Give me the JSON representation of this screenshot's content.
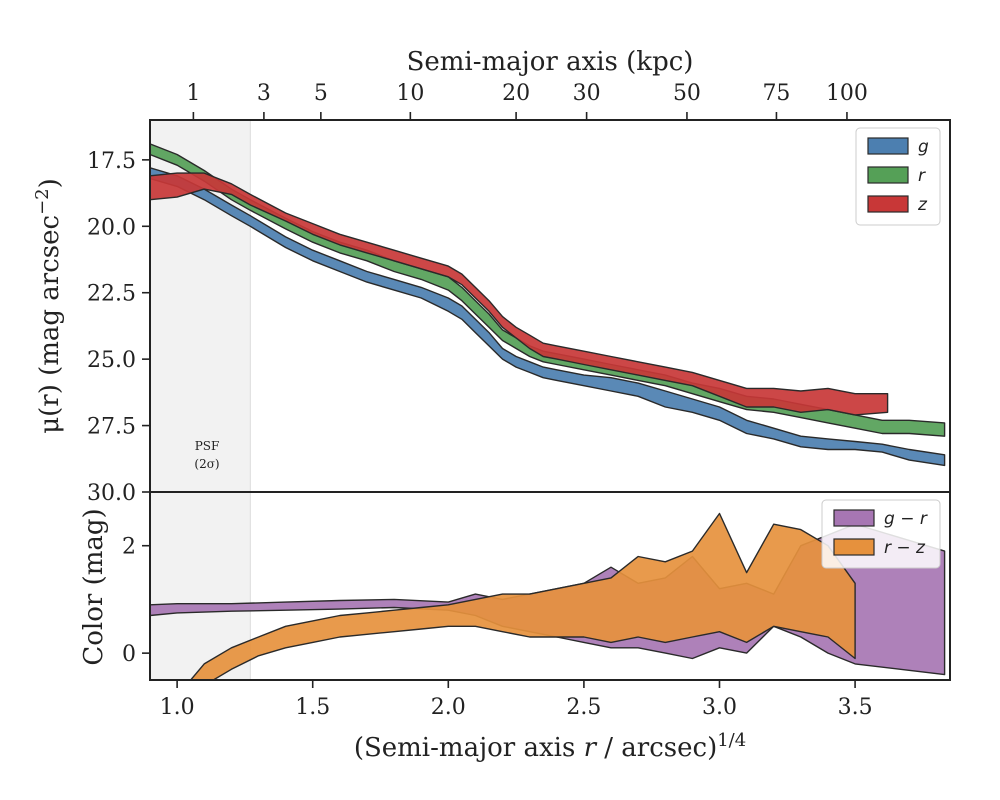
{
  "chart_data": [
    {
      "type": "area",
      "panel": "top",
      "ylabel_text": "μ(r) (mag arcsec",
      "ylabel_sup": "−2",
      "ylabel_close": ")",
      "xlabel": "",
      "ylim": [
        30.0,
        16.0
      ],
      "xlim": [
        0.9,
        3.85
      ],
      "y_inverted": true,
      "yticks": [
        17.5,
        20.0,
        22.5,
        25.0,
        27.5,
        30.0
      ],
      "ytick_labels": [
        "17.5",
        "20.0",
        "22.5",
        "25.0",
        "27.5",
        "30.0"
      ],
      "top_axis": {
        "label": "Semi-major axis (kpc)",
        "ticks_kpc": [
          1,
          3,
          5,
          10,
          20,
          30,
          50,
          75,
          100
        ],
        "tick_x_positions": [
          1.06,
          1.32,
          1.53,
          1.86,
          2.25,
          2.51,
          2.88,
          3.21,
          3.47
        ]
      },
      "psf_band": {
        "x_range": [
          0.9,
          1.27
        ],
        "label_line1": "PSF",
        "label_line2": "(2σ)",
        "color": "#f2f2f2"
      },
      "legend": "top-right",
      "series": [
        {
          "name": "g",
          "color": "#4c7fb0",
          "x": [
            0.9,
            1.0,
            1.1,
            1.2,
            1.27,
            1.4,
            1.5,
            1.6,
            1.7,
            1.8,
            1.9,
            2.0,
            2.05,
            2.1,
            2.15,
            2.2,
            2.25,
            2.3,
            2.35,
            2.4,
            2.5,
            2.6,
            2.7,
            2.8,
            2.9,
            3.0,
            3.1,
            3.2,
            3.3,
            3.4,
            3.5,
            3.6,
            3.7,
            3.83
          ],
          "upper": [
            18.2,
            18.5,
            19.0,
            19.6,
            20.0,
            20.8,
            21.3,
            21.7,
            22.1,
            22.4,
            22.7,
            23.2,
            23.5,
            24.0,
            24.5,
            25.0,
            25.3,
            25.5,
            25.7,
            25.8,
            26.0,
            26.2,
            26.4,
            26.8,
            27.0,
            27.3,
            27.8,
            28.0,
            28.3,
            28.4,
            28.4,
            28.5,
            28.8,
            29.0
          ],
          "lower": [
            17.8,
            18.1,
            18.6,
            19.2,
            19.6,
            20.4,
            20.9,
            21.3,
            21.7,
            22.0,
            22.3,
            22.7,
            23.0,
            23.5,
            24.0,
            24.6,
            24.9,
            25.1,
            25.3,
            25.4,
            25.6,
            25.7,
            25.9,
            26.2,
            26.5,
            26.8,
            27.3,
            27.6,
            27.9,
            28.0,
            28.1,
            28.2,
            28.4,
            28.6
          ]
        },
        {
          "name": "r",
          "color": "#55a057",
          "x": [
            0.9,
            1.0,
            1.1,
            1.2,
            1.27,
            1.4,
            1.5,
            1.6,
            1.7,
            1.8,
            1.9,
            2.0,
            2.05,
            2.1,
            2.15,
            2.2,
            2.25,
            2.3,
            2.35,
            2.4,
            2.5,
            2.6,
            2.7,
            2.8,
            2.9,
            3.0,
            3.1,
            3.2,
            3.3,
            3.4,
            3.5,
            3.6,
            3.7,
            3.83
          ],
          "upper": [
            17.3,
            17.7,
            18.3,
            19.0,
            19.4,
            20.1,
            20.6,
            21.0,
            21.3,
            21.7,
            22.0,
            22.4,
            22.8,
            23.3,
            23.8,
            24.3,
            24.6,
            24.9,
            25.1,
            25.2,
            25.4,
            25.6,
            25.8,
            26.0,
            26.3,
            26.6,
            26.9,
            27.0,
            27.2,
            27.4,
            27.6,
            27.8,
            27.8,
            27.9
          ],
          "lower": [
            16.9,
            17.3,
            17.9,
            18.6,
            19.0,
            19.7,
            20.2,
            20.6,
            20.9,
            21.3,
            21.6,
            21.9,
            22.3,
            22.8,
            23.3,
            23.9,
            24.2,
            24.5,
            24.7,
            24.8,
            25.0,
            25.2,
            25.4,
            25.6,
            25.9,
            26.1,
            26.4,
            26.5,
            26.7,
            26.9,
            27.1,
            27.3,
            27.3,
            27.4
          ]
        },
        {
          "name": "z",
          "color": "#c83737",
          "x": [
            0.9,
            1.0,
            1.1,
            1.2,
            1.27,
            1.4,
            1.5,
            1.6,
            1.7,
            1.8,
            1.9,
            2.0,
            2.05,
            2.1,
            2.15,
            2.2,
            2.25,
            2.3,
            2.35,
            2.4,
            2.5,
            2.6,
            2.7,
            2.8,
            2.9,
            3.0,
            3.1,
            3.2,
            3.3,
            3.4,
            3.5,
            3.62
          ],
          "upper": [
            19.0,
            18.9,
            18.6,
            18.8,
            19.2,
            19.8,
            20.3,
            20.7,
            21.0,
            21.3,
            21.6,
            21.9,
            22.2,
            22.7,
            23.2,
            23.8,
            24.2,
            24.6,
            24.9,
            25.0,
            25.2,
            25.4,
            25.6,
            25.8,
            26.0,
            26.4,
            26.8,
            26.8,
            27.0,
            26.9,
            27.1,
            27.0
          ],
          "lower": [
            18.1,
            18.0,
            18.0,
            18.4,
            18.8,
            19.5,
            19.9,
            20.3,
            20.6,
            20.9,
            21.2,
            21.5,
            21.8,
            22.3,
            22.8,
            23.4,
            23.8,
            24.1,
            24.4,
            24.5,
            24.7,
            24.9,
            25.1,
            25.3,
            25.5,
            25.8,
            26.1,
            26.1,
            26.2,
            26.1,
            26.3,
            26.3
          ]
        }
      ]
    },
    {
      "type": "area",
      "panel": "bottom",
      "ylabel": "Color (mag)",
      "xlabel_main": "(Semi-major axis ",
      "xlabel_r": "r",
      "xlabel_rest": " / arcsec)",
      "xlabel_sup": "1/4",
      "xlim": [
        0.9,
        3.85
      ],
      "ylim": [
        -0.5,
        3.0
      ],
      "yticks": [
        0,
        2
      ],
      "ytick_labels": [
        "0",
        "2"
      ],
      "xticks": [
        1.0,
        1.5,
        2.0,
        2.5,
        3.0,
        3.5
      ],
      "xtick_labels": [
        "1.0",
        "1.5",
        "2.0",
        "2.5",
        "3.0",
        "3.5"
      ],
      "legend": "top-right",
      "series": [
        {
          "name": "g − r",
          "color": "#a776b3",
          "x": [
            0.9,
            1.0,
            1.2,
            1.4,
            1.6,
            1.8,
            2.0,
            2.1,
            2.2,
            2.3,
            2.4,
            2.5,
            2.6,
            2.7,
            2.8,
            2.9,
            3.0,
            3.1,
            3.2,
            3.3,
            3.4,
            3.5,
            3.83
          ],
          "upper": [
            0.9,
            0.92,
            0.92,
            0.95,
            0.98,
            1.0,
            0.95,
            1.1,
            1.0,
            1.1,
            1.2,
            1.3,
            1.6,
            1.3,
            1.4,
            1.8,
            1.2,
            1.3,
            1.1,
            2.0,
            2.2,
            2.4,
            1.9
          ],
          "lower": [
            0.7,
            0.75,
            0.78,
            0.8,
            0.82,
            0.85,
            0.8,
            0.7,
            0.5,
            0.4,
            0.3,
            0.2,
            0.1,
            0.1,
            0.0,
            -0.1,
            0.1,
            0.0,
            0.5,
            0.3,
            0.0,
            -0.2,
            -0.4
          ]
        },
        {
          "name": "r − z",
          "color": "#e6913d",
          "x": [
            1.05,
            1.1,
            1.2,
            1.3,
            1.4,
            1.5,
            1.6,
            1.7,
            1.8,
            1.9,
            2.0,
            2.1,
            2.2,
            2.3,
            2.4,
            2.5,
            2.6,
            2.7,
            2.8,
            2.9,
            3.0,
            3.1,
            3.2,
            3.3,
            3.4,
            3.5
          ],
          "upper": [
            -0.5,
            -0.2,
            0.1,
            0.3,
            0.5,
            0.6,
            0.7,
            0.75,
            0.8,
            0.85,
            0.9,
            1.0,
            1.1,
            1.1,
            1.2,
            1.3,
            1.4,
            1.8,
            1.7,
            1.9,
            2.6,
            1.5,
            2.4,
            2.3,
            2.0,
            1.3
          ],
          "lower": [
            -0.9,
            -0.6,
            -0.3,
            -0.05,
            0.1,
            0.2,
            0.3,
            0.35,
            0.4,
            0.45,
            0.5,
            0.5,
            0.4,
            0.3,
            0.3,
            0.3,
            0.2,
            0.3,
            0.2,
            0.3,
            0.4,
            0.2,
            0.5,
            0.4,
            0.3,
            -0.1
          ]
        }
      ]
    }
  ]
}
